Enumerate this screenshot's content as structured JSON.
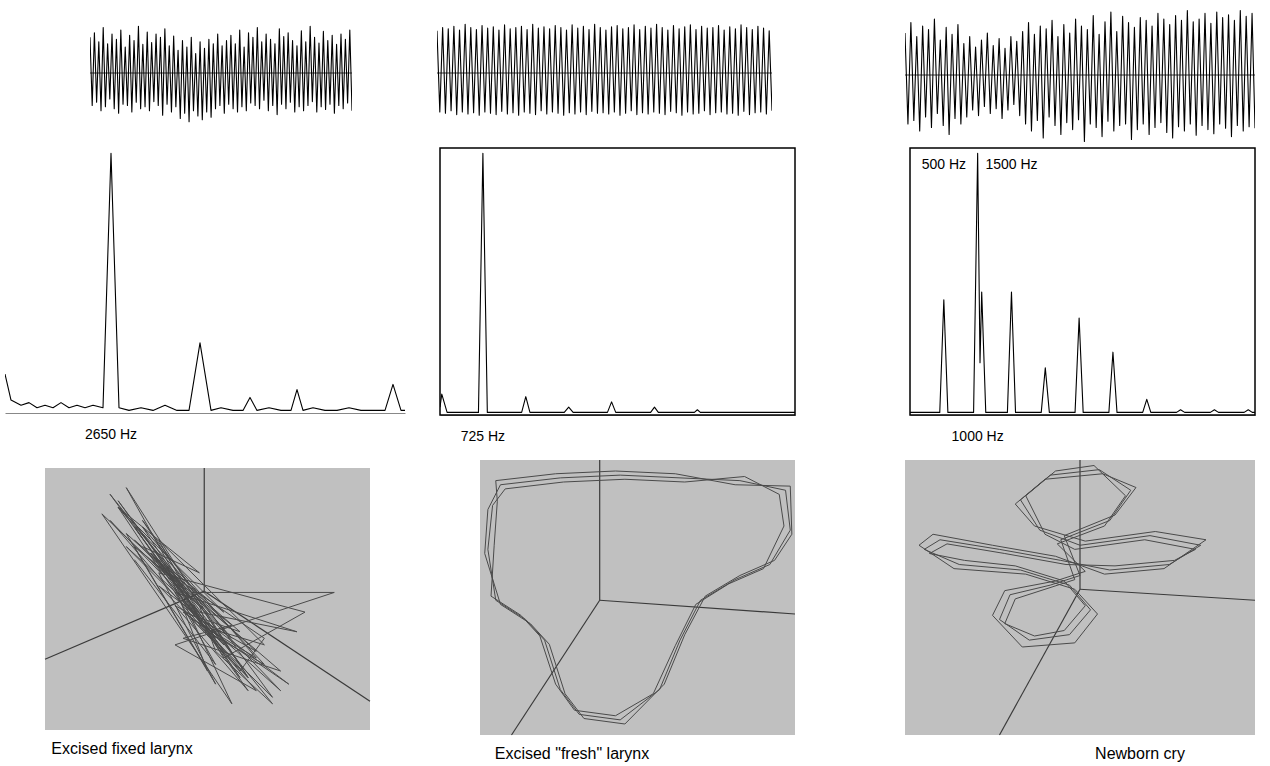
{
  "chart_data": [
    {
      "type": "line",
      "color": "#000000",
      "xlim": [
        0,
        119
      ],
      "ylim": [
        -100,
        100
      ],
      "yticks": [
        0
      ],
      "grid": true,
      "tick_labels": false,
      "values": [
        55,
        -50,
        62,
        -45,
        48,
        -58,
        70,
        -52,
        45,
        -40,
        60,
        -55,
        52,
        -62,
        66,
        -48,
        40,
        -50,
        58,
        -60,
        50,
        -45,
        72,
        -55,
        44,
        -52,
        63,
        -58,
        47,
        -44,
        60,
        -50,
        55,
        -65,
        68,
        -48,
        42,
        -60,
        57,
        -52,
        35,
        -70,
        50,
        -62,
        40,
        -75,
        55,
        -58,
        30,
        -66,
        48,
        -72,
        38,
        -60,
        52,
        -68,
        45,
        -55,
        60,
        -50,
        42,
        -62,
        50,
        -48,
        58,
        -55,
        45,
        -60,
        66,
        -52,
        40,
        -58,
        62,
        -46,
        55,
        -50,
        70,
        -55,
        48,
        -42,
        60,
        -58,
        52,
        -50,
        45,
        -64,
        68,
        -48,
        56,
        -55,
        62,
        -45,
        50,
        -60,
        42,
        -52,
        65,
        -58,
        48,
        -50,
        72,
        -44,
        55,
        -60,
        46,
        -52,
        64,
        -56,
        50,
        -48,
        58,
        -62,
        44,
        -50,
        60,
        -55,
        52,
        -46,
        66,
        -58
      ]
    },
    {
      "type": "line",
      "color": "#000000",
      "xlim": [
        0,
        119
      ],
      "ylim": [
        -100,
        100
      ],
      "yticks": [
        0
      ],
      "grid": true,
      "tick_labels": false,
      "values": [
        65,
        -60,
        70,
        -62,
        68,
        -58,
        72,
        -64,
        66,
        -60,
        75,
        -63,
        70,
        -61,
        67,
        -65,
        73,
        -60,
        69,
        -62,
        71,
        -64,
        66,
        -59,
        74,
        -63,
        68,
        -61,
        70,
        -65,
        72,
        -60,
        67,
        -62,
        75,
        -64,
        69,
        -58,
        71,
        -63,
        68,
        -60,
        73,
        -62,
        70,
        -65,
        66,
        -61,
        74,
        -63,
        69,
        -60,
        72,
        -64,
        67,
        -59,
        75,
        -62,
        70,
        -61,
        66,
        -63,
        71,
        -60,
        73,
        -65,
        68,
        -62,
        70,
        -58,
        74,
        -64,
        67,
        -61,
        72,
        -63,
        69,
        -60,
        75,
        -62,
        70,
        -64,
        66,
        -59,
        73,
        -61,
        68,
        -65,
        71,
        -60,
        74,
        -63,
        67,
        -62,
        72,
        -58,
        69,
        -64,
        70,
        -61,
        73,
        -60,
        66,
        -63,
        71,
        -62,
        68,
        -65,
        74,
        -59,
        70,
        -64,
        67,
        -61,
        72,
        -60,
        69,
        -63,
        65,
        -58
      ]
    },
    {
      "type": "line",
      "color": "#000000",
      "xlim": [
        0,
        119
      ],
      "ylim": [
        -100,
        100
      ],
      "yticks": [
        0
      ],
      "grid": true,
      "tick_labels": false,
      "values": [
        60,
        -70,
        75,
        -65,
        55,
        -80,
        70,
        -60,
        65,
        -75,
        80,
        -55,
        50,
        -72,
        68,
        -85,
        58,
        -62,
        72,
        -70,
        45,
        -60,
        55,
        -50,
        40,
        -58,
        50,
        -45,
        60,
        -55,
        42,
        -48,
        52,
        -62,
        38,
        -50,
        55,
        -42,
        48,
        -58,
        62,
        -70,
        75,
        -80,
        58,
        -65,
        70,
        -90,
        66,
        -60,
        78,
        -72,
        55,
        -85,
        72,
        -68,
        60,
        -78,
        80,
        -64,
        70,
        -95,
        65,
        -70,
        85,
        -75,
        58,
        -88,
        76,
        -66,
        90,
        -80,
        62,
        -72,
        84,
        -70,
        75,
        -92,
        68,
        -78,
        82,
        -70,
        78,
        -85,
        70,
        -75,
        88,
        -68,
        80,
        -82,
        72,
        -90,
        85,
        -74,
        78,
        -80,
        92,
        -70,
        76,
        -86,
        80,
        -72,
        88,
        -78,
        74,
        -84,
        90,
        -70,
        82,
        -76,
        86,
        -88,
        78,
        -72,
        92,
        -80,
        84,
        -74,
        88,
        -76
      ]
    },
    {
      "type": "line",
      "color": "#000000",
      "xlim": [
        0,
        10000
      ],
      "ylim": [
        0,
        102
      ],
      "tick_labels": false,
      "x": [
        0,
        150,
        400,
        600,
        800,
        1000,
        1200,
        1400,
        1600,
        1800,
        2000,
        2200,
        2450,
        2650,
        2850,
        3100,
        3400,
        3700,
        4000,
        4300,
        4600,
        4875,
        5150,
        5400,
        5700,
        5950,
        6125,
        6300,
        6600,
        6900,
        7150,
        7300,
        7450,
        7700,
        8000,
        8300,
        8600,
        8900,
        9200,
        9500,
        9700,
        9900,
        10000
      ],
      "values": [
        15,
        5,
        3,
        4,
        2,
        3,
        2,
        4,
        2,
        3,
        2,
        3,
        2,
        100,
        2,
        1,
        2,
        1,
        3,
        1,
        1,
        27,
        1,
        2,
        1,
        1,
        6,
        1,
        2,
        1,
        1,
        9,
        1,
        2,
        1,
        1,
        2,
        1,
        1,
        1,
        11,
        1,
        1
      ],
      "annotations": [
        {
          "text": "2650 Hz",
          "x": 2650
        }
      ]
    },
    {
      "type": "line",
      "color": "#000000",
      "xlim": [
        0,
        6000
      ],
      "ylim": [
        0,
        102
      ],
      "tick_labels": false,
      "x": [
        0,
        30,
        120,
        300,
        500,
        650,
        725,
        800,
        1000,
        1200,
        1380,
        1450,
        1520,
        1800,
        2100,
        2175,
        2250,
        2600,
        2830,
        2900,
        2970,
        3300,
        3560,
        3625,
        3690,
        4000,
        4300,
        4350,
        4400,
        5000,
        5500,
        6000
      ],
      "values": [
        3,
        8,
        1,
        1,
        1,
        1,
        100,
        1,
        1,
        1,
        1,
        7,
        1,
        1,
        1,
        3,
        1,
        1,
        1,
        5,
        1,
        1,
        1,
        3,
        1,
        1,
        1,
        2,
        1,
        1,
        1,
        1
      ],
      "annotations": [
        {
          "text": "725 Hz",
          "x": 725
        }
      ]
    },
    {
      "type": "line",
      "color": "#000000",
      "xlim": [
        0,
        5100
      ],
      "ylim": [
        0,
        102
      ],
      "tick_labels": false,
      "x": [
        0,
        300,
        440,
        500,
        560,
        800,
        940,
        1000,
        1035,
        1060,
        1120,
        1300,
        1440,
        1500,
        1560,
        1800,
        1940,
        2000,
        2060,
        2300,
        2440,
        2500,
        2560,
        2800,
        2940,
        3000,
        3060,
        3300,
        3440,
        3500,
        3560,
        3800,
        3940,
        4000,
        4060,
        4300,
        4440,
        4500,
        4560,
        4800,
        4940,
        5000,
        5060,
        5100
      ],
      "values": [
        1,
        1,
        1,
        44,
        1,
        1,
        1,
        100,
        20,
        47,
        1,
        1,
        1,
        47,
        1,
        1,
        1,
        18,
        1,
        1,
        1,
        37,
        1,
        1,
        1,
        24,
        1,
        1,
        1,
        6,
        1,
        1,
        1,
        2,
        1,
        1,
        1,
        2,
        1,
        1,
        1,
        2,
        1,
        1
      ],
      "annotations": [
        {
          "text": "500 Hz",
          "x": 500,
          "y": 94
        },
        {
          "text": "1500 Hz",
          "x": 1500,
          "y": 94
        },
        {
          "text": "1000 Hz",
          "x": 1000
        }
      ]
    },
    {
      "type": "phase",
      "title": "Excised fixed larynx",
      "color": "#4a4a4a",
      "xlim": [
        -100,
        100
      ],
      "ylim": [
        -100,
        100
      ],
      "tick_labels": false,
      "x": [
        -40,
        -5,
        -55,
        10,
        -30,
        20,
        -45,
        5,
        -60,
        -15,
        -35,
        25,
        -20,
        30,
        -50,
        0,
        -25,
        15,
        -65,
        -10,
        -30,
        35,
        -5,
        40,
        -40,
        20,
        -55,
        -20,
        10,
        60,
        -30,
        5,
        -45,
        15,
        -15,
        45,
        -35,
        -5,
        -50,
        25,
        -10,
        78,
        -20,
        30,
        -60,
        -25,
        0,
        35,
        -40,
        10,
        -30,
        50,
        -15,
        20,
        -45,
        -5,
        5,
        40,
        -35,
        15,
        -55,
        -20,
        25,
        -10,
        30,
        -40,
        0,
        45,
        -25,
        10,
        -50,
        -15,
        20,
        35,
        -30,
        -5,
        55,
        -20,
        5,
        -45
      ],
      "values": [
        40,
        20,
        70,
        -10,
        30,
        -60,
        55,
        -30,
        80,
        10,
        35,
        -70,
        -5,
        -40,
        50,
        -55,
        25,
        -80,
        65,
        0,
        45,
        -35,
        -20,
        -75,
        60,
        -50,
        75,
        15,
        -45,
        -10,
        20,
        -65,
        40,
        -20,
        -30,
        -55,
        30,
        -15,
        85,
        -60,
        5,
        5,
        -35,
        -70,
        60,
        15,
        -25,
        -50,
        50,
        -40,
        10,
        -65,
        -10,
        -25,
        45,
        -5,
        -40,
        -80,
        35,
        -30,
        70,
        5,
        -60,
        -15,
        -45,
        55,
        -20,
        -70,
        20,
        -35,
        40,
        0,
        -55,
        -30,
        25,
        -10,
        -25,
        5,
        -50,
        30
      ]
    },
    {
      "type": "phase",
      "title": "Excised \"fresh\" larynx",
      "color": "#4a4a4a",
      "xlim": [
        -100,
        100
      ],
      "ylim": [
        -100,
        100
      ],
      "tick_labels": false,
      "x": [
        -87,
        -49,
        -11,
        27,
        65,
        94,
        97,
        84,
        62,
        40,
        27,
        14,
        -11,
        -37,
        -49,
        -59,
        -71,
        -90,
        -95,
        -92,
        -84,
        -47,
        -8,
        30,
        68,
        90,
        93,
        80,
        58,
        37,
        24,
        10,
        -14,
        -40,
        -52,
        -62,
        -74,
        -93,
        -91,
        -89,
        -90,
        -52,
        -14,
        24,
        62,
        97,
        98,
        87,
        65,
        43,
        30,
        17,
        -8,
        -34,
        -46,
        -56,
        -68,
        -87,
        -97,
        -95,
        -87
      ],
      "values": [
        82,
        87,
        89,
        87,
        85,
        78,
        49,
        24,
        13,
        -2,
        -31,
        -67,
        -89,
        -85,
        -67,
        -31,
        -16,
        -2,
        35,
        67,
        79,
        84,
        86,
        84,
        88,
        75,
        52,
        21,
        10,
        -5,
        -35,
        -70,
        -86,
        -82,
        -63,
        -28,
        -13,
        1,
        38,
        70,
        85,
        90,
        92,
        90,
        82,
        81,
        46,
        27,
        16,
        1,
        -27,
        -63,
        -92,
        -88,
        -70,
        -34,
        -19,
        -5,
        32,
        64,
        82
      ]
    },
    {
      "type": "phase",
      "title": "Newborn cry",
      "color": "#4a4a4a",
      "xlim": [
        -100,
        100
      ],
      "ylim": [
        -100,
        100
      ],
      "tick_labels": false,
      "x": [
        -11,
        17,
        29,
        11,
        -17,
        -34,
        -23,
        0,
        40,
        69,
        51,
        17,
        -11,
        -46,
        -80,
        -89,
        -69,
        -34,
        -6,
        6,
        -6,
        -29,
        -46,
        -40,
        -17,
        0,
        -9,
        20,
        32,
        13,
        -20,
        -37,
        -26,
        3,
        43,
        72,
        48,
        14,
        -14,
        -50,
        -84,
        -92,
        -72,
        -31,
        -3,
        10,
        -3,
        -33,
        -50,
        -43,
        -14,
        3,
        -13,
        14,
        26,
        8,
        -14,
        -31,
        -20,
        -3,
        37,
        66,
        54,
        20,
        -8,
        -43,
        -76,
        -86,
        -66,
        -37,
        -9,
        3,
        -9,
        -26,
        -43,
        -37,
        -20,
        -3,
        -11
      ],
      "values": [
        42,
        56,
        78,
        93,
        89,
        71,
        49,
        38,
        45,
        38,
        24,
        20,
        27,
        35,
        42,
        35,
        24,
        20,
        9,
        -9,
        -27,
        -31,
        -16,
        2,
        9,
        16,
        45,
        60,
        80,
        90,
        86,
        68,
        52,
        41,
        48,
        42,
        21,
        17,
        30,
        38,
        46,
        38,
        21,
        17,
        6,
        -12,
        -33,
        -36,
        -13,
        5,
        12,
        19,
        39,
        52,
        74,
        96,
        92,
        74,
        46,
        35,
        42,
        35,
        27,
        23,
        24,
        32,
        39,
        32,
        27,
        23,
        12,
        -6,
        -24,
        -28,
        -19,
        -1,
        6,
        13,
        42
      ]
    }
  ]
}
